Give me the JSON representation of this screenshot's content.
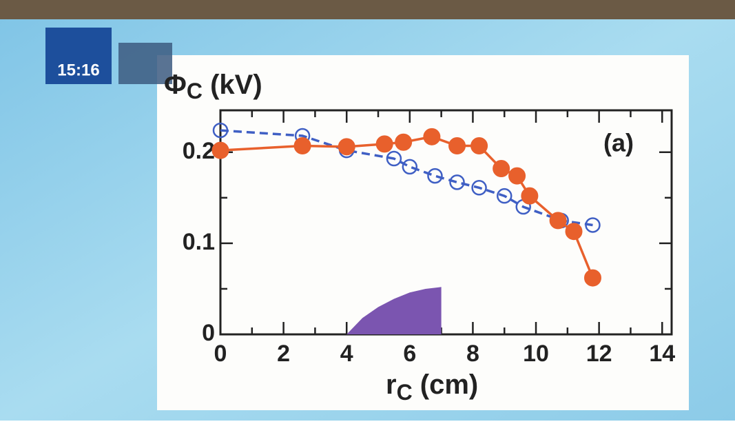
{
  "overlay": {
    "clock": "15:16"
  },
  "chart_data": {
    "type": "line",
    "y_label": [
      "Φ",
      "C",
      " (kV)"
    ],
    "x_label": [
      "r",
      "C",
      " (cm)"
    ],
    "annotation": "(a)",
    "xlim": [
      0,
      14.3
    ],
    "ylim": [
      0,
      0.246
    ],
    "xticks": [
      0,
      2,
      4,
      6,
      8,
      10,
      12,
      14
    ],
    "x_minor_ticks": [
      1,
      3,
      5,
      7,
      9,
      11,
      13
    ],
    "yticks": [
      0,
      0.1,
      0.2
    ],
    "y_minor_ticks": [
      0.05,
      0.15
    ],
    "series": [
      {
        "color": "#3f5fc4",
        "style": "dashed",
        "marker": "open",
        "x": [
          0,
          2.6,
          4,
          5.5,
          6.0,
          6.8,
          7.5,
          8.2,
          9.0,
          9.6,
          10.8,
          11.8
        ],
        "values": [
          0.224,
          0.218,
          0.202,
          0.193,
          0.184,
          0.174,
          0.167,
          0.161,
          0.152,
          0.14,
          0.125,
          0.12
        ]
      },
      {
        "color": "#e8602c",
        "style": "solid",
        "marker": "filled",
        "x": [
          0,
          2.6,
          4,
          5.2,
          5.8,
          6.7,
          7.5,
          8.2,
          8.9,
          9.4,
          9.8,
          10.7,
          11.2,
          11.8
        ],
        "values": [
          0.202,
          0.207,
          0.206,
          0.209,
          0.211,
          0.217,
          0.207,
          0.207,
          0.182,
          0.174,
          0.152,
          0.125,
          0.113,
          0.062
        ]
      },
      {
        "color": "#7b55b0",
        "style": "area",
        "marker": "none",
        "x": [
          4,
          4.5,
          5,
          5.5,
          6,
          6.5,
          7,
          7
        ],
        "values": [
          0,
          0.018,
          0.03,
          0.039,
          0.046,
          0.05,
          0.052,
          0
        ]
      }
    ]
  }
}
